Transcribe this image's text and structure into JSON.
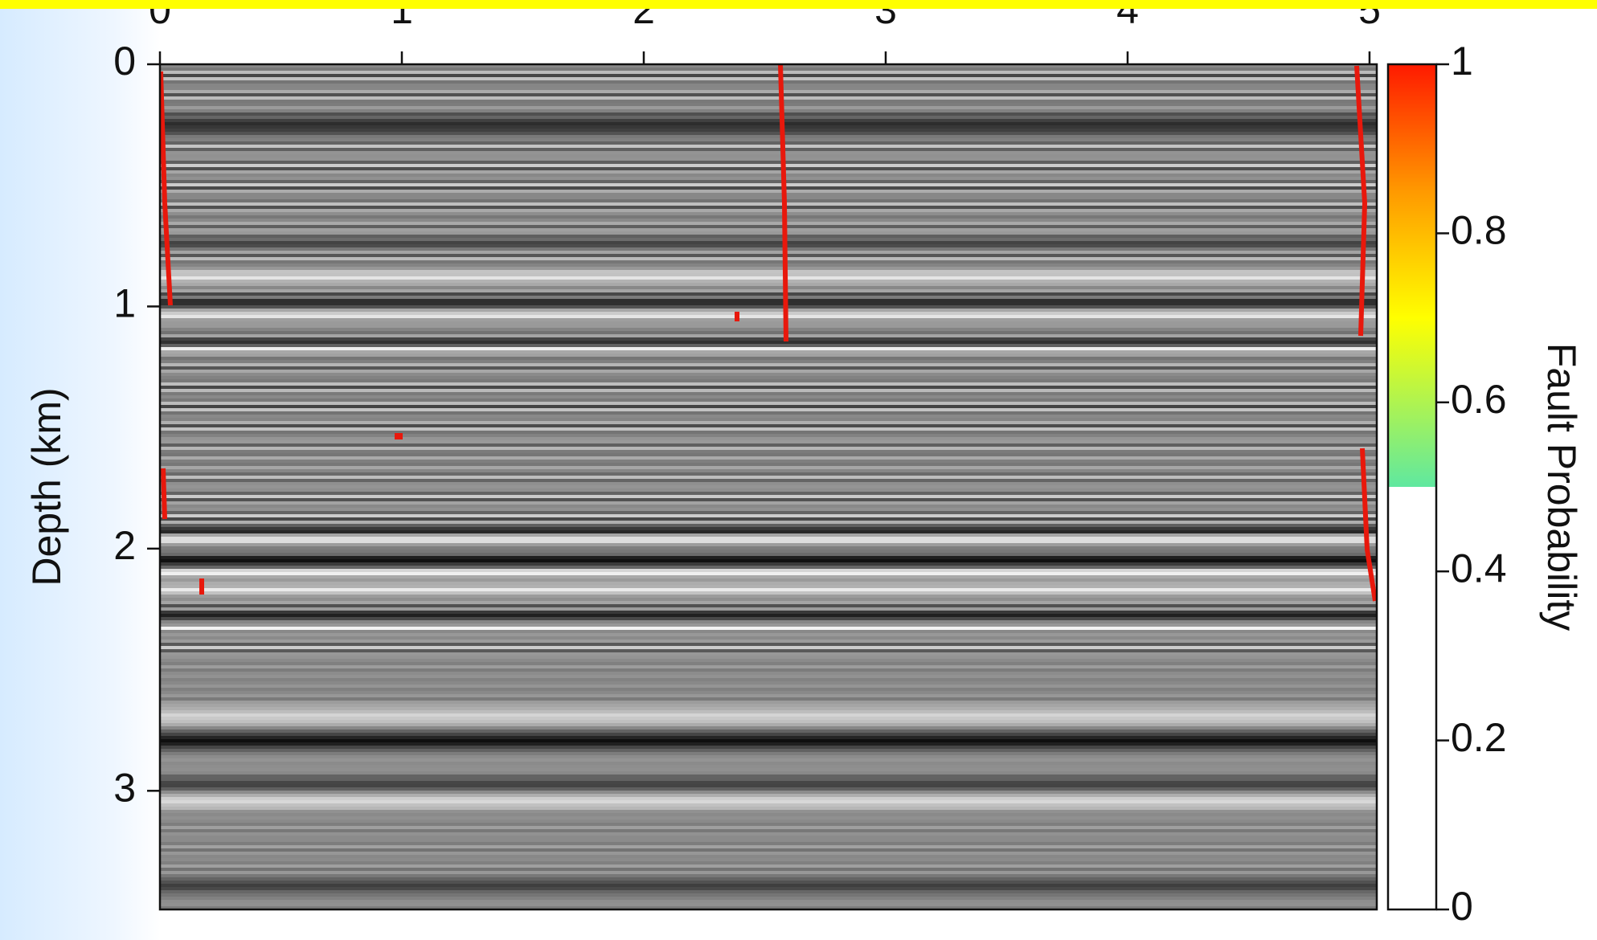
{
  "chart_data": {
    "type": "image",
    "ylabel": "Depth (km)",
    "xlim": [
      0,
      5.03
    ],
    "xticks": [
      0,
      1,
      2,
      3,
      4,
      5
    ],
    "ylim": [
      0,
      3.49
    ],
    "yticks": [
      0,
      1,
      2,
      3
    ],
    "colorbar": {
      "label": "Fault Probability",
      "lim": [
        0,
        1
      ],
      "ticks": [
        0,
        0.2,
        0.4,
        0.6,
        0.8,
        1
      ],
      "stops": [
        {
          "value": 0,
          "color": "#ffffff"
        },
        {
          "value": 0.5,
          "color": "#ffffff"
        },
        {
          "value": 0.5,
          "color": "#5fe8a0"
        },
        {
          "value": 0.7,
          "color": "#ffff00"
        },
        {
          "value": 0.85,
          "color": "#ff9900"
        },
        {
          "value": 1,
          "color": "#ff1a00"
        }
      ]
    }
  }
}
